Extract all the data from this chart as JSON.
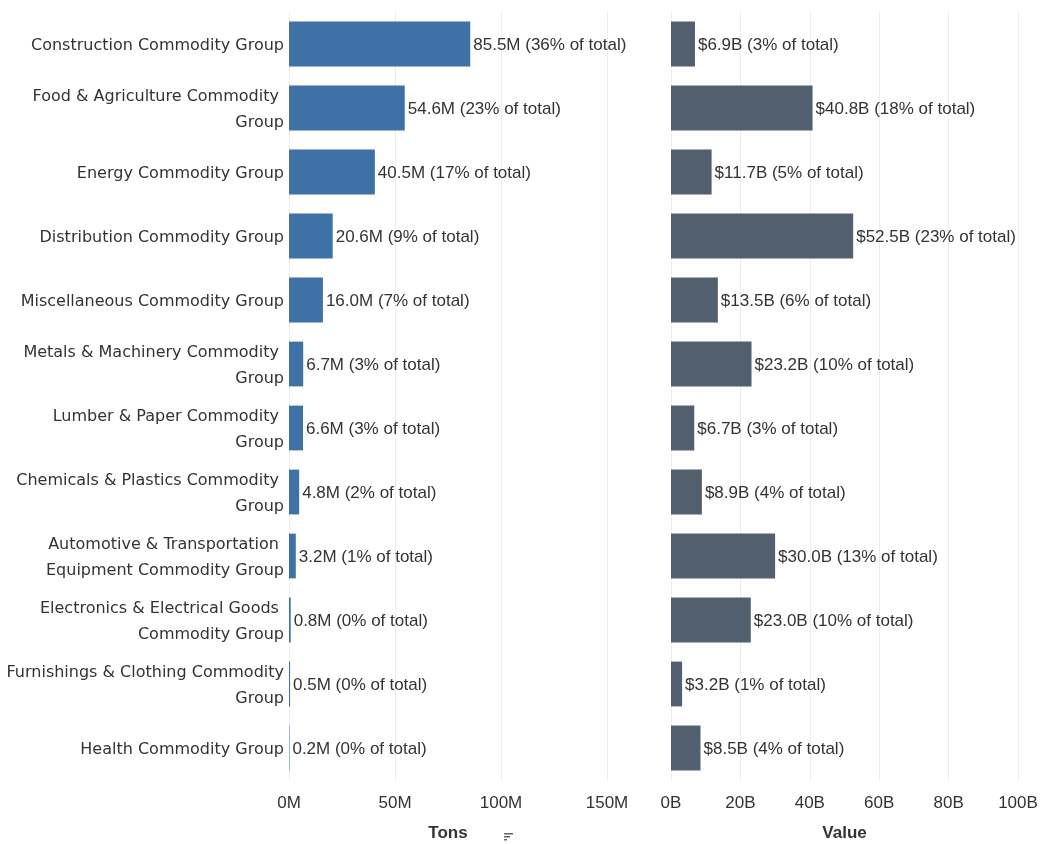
{
  "chart_data": [
    {
      "type": "bar",
      "orientation": "horizontal",
      "xlabel": "Tons",
      "color": "#3e72a6",
      "grid": "x",
      "categories": [
        "Construction Commodity Group",
        "Food & Agriculture Commodity Group",
        "Energy Commodity Group",
        "Distribution Commodity Group",
        "Miscellaneous Commodity Group",
        "Metals & Machinery Commodity Group",
        "Lumber & Paper Commodity Group",
        "Chemicals & Plastics Commodity Group",
        "Automotive & Transportation Equipment Commodity Group",
        "Electronics & Electrical Goods Commodity Group",
        "Furnishings & Clothing Commodity Group",
        "Health Commodity Group"
      ],
      "values": [
        85500000,
        54600000,
        40500000,
        20600000,
        16000000,
        6700000,
        6600000,
        4800000,
        3200000,
        800000,
        500000,
        200000
      ],
      "value_labels": [
        "85.5M (36% of total)",
        "54.6M (23% of total)",
        "40.5M (17% of total)",
        "20.6M (9% of total)",
        "16.0M (7% of total)",
        "6.7M (3% of total)",
        "6.6M (3% of total)",
        "4.8M (2% of total)",
        "3.2M (1% of total)",
        "0.8M (0% of total)",
        "0.5M (0% of total)",
        "0.2M (0% of total)"
      ],
      "xlim": [
        0,
        150000000
      ],
      "xticks": [
        {
          "value": 0,
          "label": "0M"
        },
        {
          "value": 50000000,
          "label": "50M"
        },
        {
          "value": 100000000,
          "label": "100M"
        },
        {
          "value": 150000000,
          "label": "150M"
        }
      ]
    },
    {
      "type": "bar",
      "orientation": "horizontal",
      "xlabel": "Value",
      "color": "#525f6e",
      "grid": "x",
      "categories": [
        null,
        null,
        null,
        null,
        null,
        null,
        null,
        null,
        null,
        null,
        null,
        null
      ],
      "values": [
        6900000000,
        40800000000,
        11700000000,
        52500000000,
        13500000000,
        23200000000,
        6700000000,
        8900000000,
        30000000000,
        23000000000,
        3200000000,
        8500000000
      ],
      "value_labels": [
        "$6.9B (3% of total)",
        "$40.8B (18% of total)",
        "$11.7B (5% of total)",
        "$52.5B (23% of total)",
        "$13.5B (6% of total)",
        "$23.2B (10% of total)",
        "$6.7B (3% of total)",
        "$8.9B (4% of total)",
        "$30.0B (13% of total)",
        "$23.0B (10% of total)",
        "$3.2B (1% of total)",
        "$8.5B (4% of total)"
      ],
      "xlim": [
        0,
        100000000000
      ],
      "xticks": [
        {
          "value": 0,
          "label": "0B"
        },
        {
          "value": 20000000000,
          "label": "20B"
        },
        {
          "value": 40000000000,
          "label": "40B"
        },
        {
          "value": 60000000000,
          "label": "60B"
        },
        {
          "value": 80000000000,
          "label": "80B"
        },
        {
          "value": 100000000000,
          "label": "100B"
        }
      ]
    }
  ]
}
